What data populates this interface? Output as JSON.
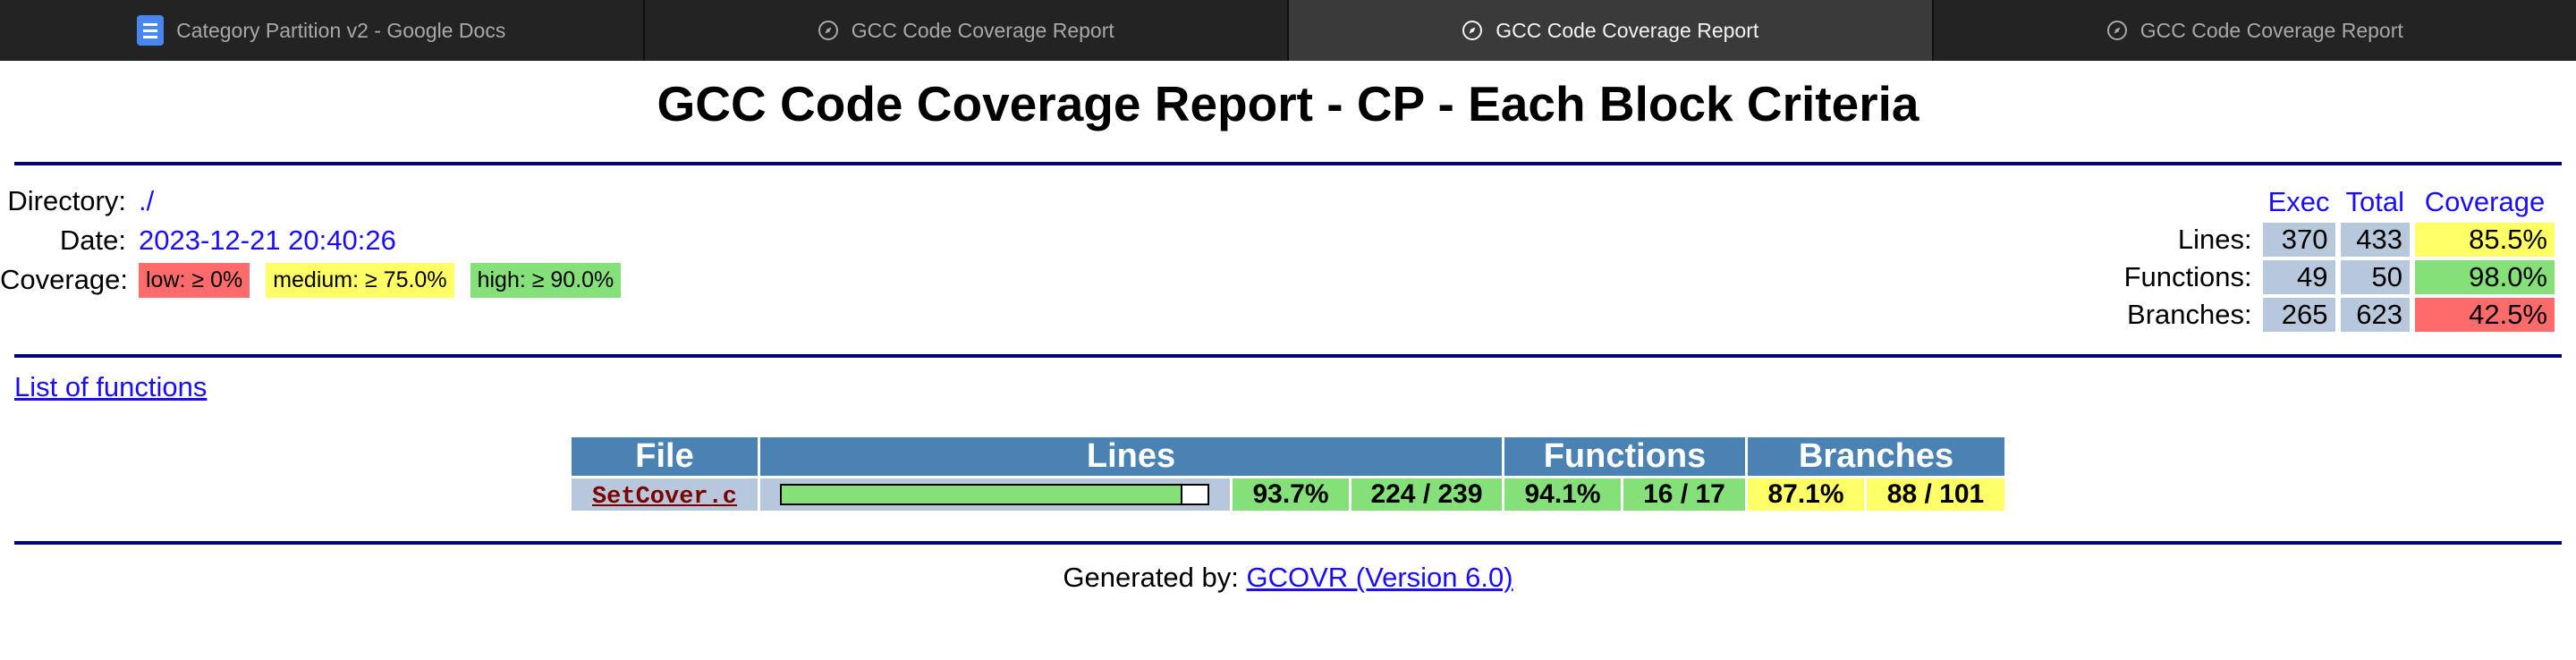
{
  "browser": {
    "tabs": [
      {
        "label": "Category Partition v2 - Google Docs",
        "icon": "google-docs-icon",
        "active": false
      },
      {
        "label": "GCC Code Coverage Report",
        "icon": "compass-icon",
        "active": false
      },
      {
        "label": "GCC Code Coverage Report",
        "icon": "compass-icon",
        "active": true
      },
      {
        "label": "GCC Code Coverage Report",
        "icon": "compass-icon",
        "active": false
      }
    ]
  },
  "report": {
    "title": "GCC Code Coverage Report - CP - Each Block Criteria",
    "directory_label": "Directory:",
    "directory": "./",
    "date_label": "Date:",
    "date": "2023-12-21 20:40:26",
    "coverage_label": "Coverage:",
    "legend": {
      "low": "low: ≥ 0%",
      "medium": "medium: ≥ 75.0%",
      "high": "high: ≥ 90.0%"
    },
    "summary": {
      "headers": [
        "Exec",
        "Total",
        "Coverage"
      ],
      "rows": [
        {
          "label": "Lines:",
          "exec": "370",
          "total": "433",
          "coverage": "85.5%",
          "level": "medium"
        },
        {
          "label": "Functions:",
          "exec": "49",
          "total": "50",
          "coverage": "98.0%",
          "level": "high"
        },
        {
          "label": "Branches:",
          "exec": "265",
          "total": "623",
          "coverage": "42.5%",
          "level": "low"
        }
      ]
    },
    "list_of_functions": "List of functions",
    "file_table": {
      "headers": {
        "file": "File",
        "lines": "Lines",
        "functions": "Functions",
        "branches": "Branches"
      },
      "rows": [
        {
          "file": "SetCover.c",
          "lines_fraction": 0.937,
          "lines_pct": "93.7%",
          "lines_count": "224 / 239",
          "functions_pct": "94.1%",
          "functions_count": "16 / 17",
          "branches_pct": "87.1%",
          "branches_count": "88 / 101"
        }
      ]
    },
    "footer": {
      "prefix": "Generated by:",
      "link": "GCOVR (Version 6.0)"
    }
  },
  "colors": {
    "low": "#ff6b6b",
    "medium": "#ffff66",
    "high": "#86e07a",
    "header_blue": "#4a82b4",
    "rule": "#00007a",
    "link": "#1a0dff"
  }
}
